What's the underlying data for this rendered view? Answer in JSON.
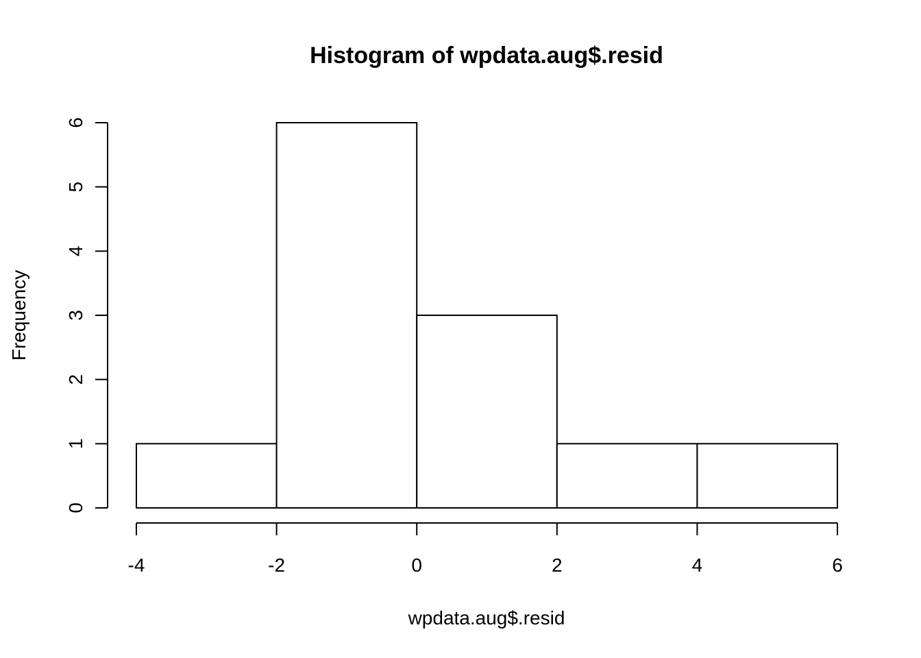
{
  "chart_data": {
    "type": "bar",
    "title": "Histogram of wpdata.aug$.resid",
    "xlabel": "wpdata.aug$.resid",
    "ylabel": "Frequency",
    "bins": [
      {
        "from": -4,
        "to": -2,
        "count": 1
      },
      {
        "from": -2,
        "to": 0,
        "count": 6
      },
      {
        "from": 0,
        "to": 2,
        "count": 3
      },
      {
        "from": 2,
        "to": 4,
        "count": 1
      },
      {
        "from": 4,
        "to": 6,
        "count": 1
      }
    ],
    "xlim": [
      -4,
      6
    ],
    "ylim": [
      0,
      6
    ],
    "x_ticks": [
      "-4",
      "-2",
      "0",
      "2",
      "4",
      "6"
    ],
    "y_ticks": [
      "0",
      "1",
      "2",
      "3",
      "4",
      "5",
      "6"
    ],
    "grid": false,
    "legend": "none"
  }
}
